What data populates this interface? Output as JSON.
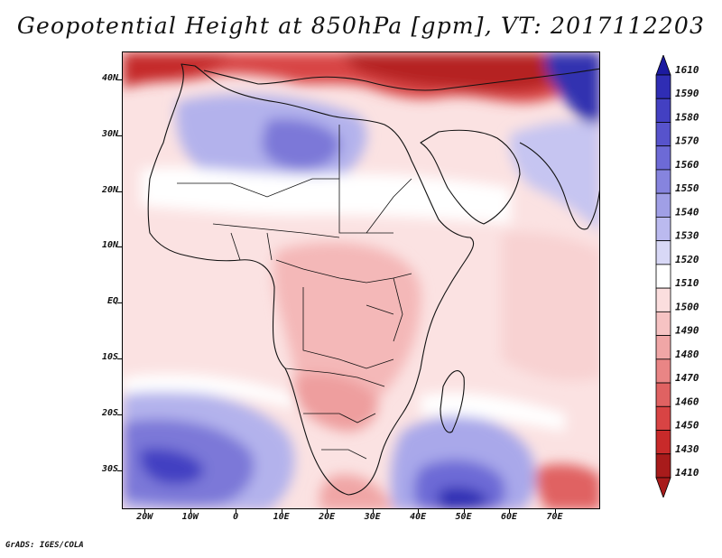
{
  "title": "Geopotential Height at 850hPa [gpm], VT: 2017112203",
  "footer": "GrADS: IGES/COLA",
  "map": {
    "lon_range": [
      -25,
      80
    ],
    "lat_range": [
      -37,
      45
    ],
    "y_ticks": [
      {
        "lat": 40,
        "label": "40N"
      },
      {
        "lat": 30,
        "label": "30N"
      },
      {
        "lat": 20,
        "label": "20N"
      },
      {
        "lat": 10,
        "label": "10N"
      },
      {
        "lat": 0,
        "label": "EQ"
      },
      {
        "lat": -10,
        "label": "10S"
      },
      {
        "lat": -20,
        "label": "20S"
      },
      {
        "lat": -30,
        "label": "30S"
      }
    ],
    "x_ticks": [
      {
        "lon": -20,
        "label": "20W"
      },
      {
        "lon": -10,
        "label": "10W"
      },
      {
        "lon": 0,
        "label": "0"
      },
      {
        "lon": 10,
        "label": "10E"
      },
      {
        "lon": 20,
        "label": "20E"
      },
      {
        "lon": 30,
        "label": "30E"
      },
      {
        "lon": 40,
        "label": "40E"
      },
      {
        "lon": 50,
        "label": "50E"
      },
      {
        "lon": 60,
        "label": "60E"
      },
      {
        "lon": 70,
        "label": "70E"
      }
    ]
  },
  "colorbar": {
    "levels": [
      "1610",
      "1590",
      "1580",
      "1570",
      "1560",
      "1550",
      "1540",
      "1530",
      "1520",
      "1510",
      "1500",
      "1490",
      "1480",
      "1470",
      "1460",
      "1450",
      "1430",
      "1410"
    ],
    "colors": [
      "#1c1aa0",
      "#2f2db4",
      "#4340c2",
      "#5753cc",
      "#6d6ad6",
      "#8684de",
      "#a09fe6",
      "#bbbaef",
      "#d8d8f6",
      "#ffffff",
      "#fbdede",
      "#f6c3c3",
      "#f0a6a6",
      "#e98585",
      "#e06262",
      "#d84444",
      "#c82a2a",
      "#a81b1b"
    ]
  }
}
